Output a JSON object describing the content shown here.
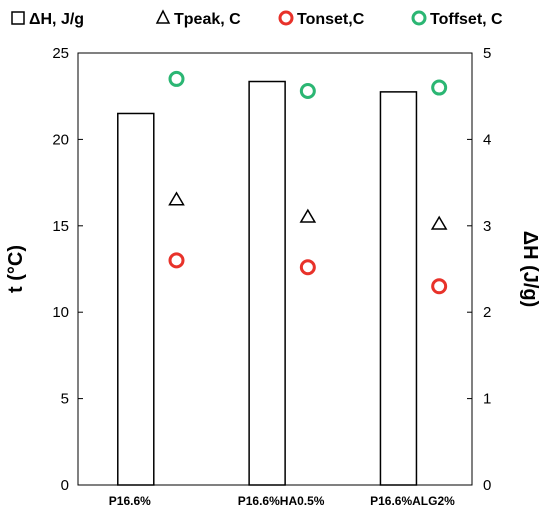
{
  "chart_data": {
    "type": "bar",
    "categories": [
      "P16.6%",
      "P16.6%HA0.5%",
      "P16.6%ALG2%"
    ],
    "legend": [
      {
        "label": "ΔH, J/g",
        "marker": "square-outline",
        "color": "#000000"
      },
      {
        "label": "Tpeak, C",
        "marker": "triangle-outline",
        "color": "#000000"
      },
      {
        "label": "Tonset,C",
        "marker": "circle-outline",
        "color": "#e8322a"
      },
      {
        "label": "Toffset, C",
        "marker": "circle-outline",
        "color": "#2bb673"
      }
    ],
    "bars": {
      "name": "ΔH, J/g",
      "axis": "right",
      "values": [
        4.3,
        4.67,
        4.55
      ]
    },
    "series": [
      {
        "name": "Tpeak, C",
        "axis": "left",
        "marker": "triangle",
        "color": "#000000",
        "values": [
          16.5,
          15.5,
          15.1
        ]
      },
      {
        "name": "Tonset,C",
        "axis": "left",
        "marker": "circle",
        "color": "#e8322a",
        "values": [
          13.0,
          12.6,
          11.5
        ]
      },
      {
        "name": "Toffset, C",
        "axis": "left",
        "marker": "circle",
        "color": "#2bb673",
        "values": [
          23.5,
          22.8,
          23.0
        ]
      }
    ],
    "ylabel_left": "t (°C)",
    "ylabel_right": "ΔH (J/g)",
    "ylim_left": [
      0,
      25
    ],
    "ylim_right": [
      0,
      5
    ],
    "yticks_left": [
      "0",
      "5",
      "10",
      "15",
      "20",
      "25"
    ],
    "yticks_right": [
      "0",
      "1",
      "2",
      "3",
      "4",
      "5"
    ],
    "legend_position": "top",
    "grid": false
  }
}
